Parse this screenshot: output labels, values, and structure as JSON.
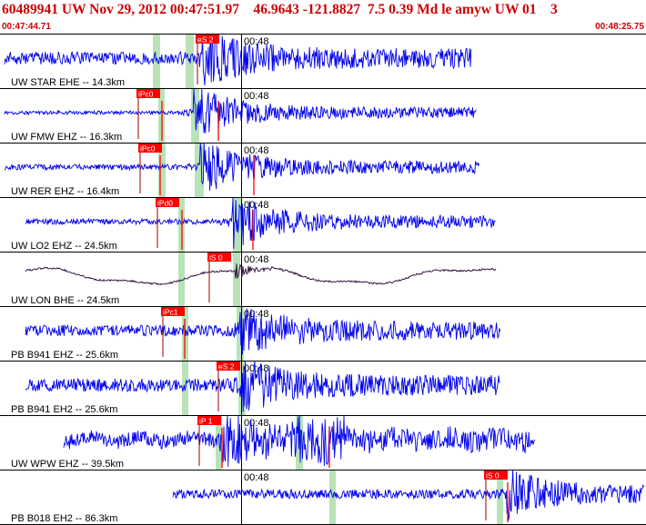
{
  "header": {
    "title": "60489941 UW Nov 29, 2012 00:47:51.97    46.9643 -121.8827  7.5 0.39 Md le amyw UW 01    3",
    "start_time": "00:47:44.71",
    "end_time": "00:48:25.75"
  },
  "minute_label": "00:48",
  "colors": {
    "title": "#cc0000",
    "trace": "#0000ee",
    "trace_dark": "#220033",
    "pick_bg": "#ff0000",
    "pick_text": "#ffffff",
    "window": "#b8e3b8",
    "label": "#000000"
  },
  "channels": [
    {
      "label": "UW STAR EHE -- 14.3km",
      "pick": "eS 2"
    },
    {
      "label": "UW FMW EHZ -- 16.3km",
      "pick": "iPc0"
    },
    {
      "label": "UW RER EHZ -- 16.4km",
      "pick": "iPc0"
    },
    {
      "label": "UW LO2 EHZ -- 24.5km",
      "pick": "iPd0"
    },
    {
      "label": "UW LON BHE -- 24.5km",
      "pick": "iS 0"
    },
    {
      "label": "PB B941 EHZ -- 25.6km",
      "pick": "iPc1"
    },
    {
      "label": "PB B941 EH2 -- 25.6km",
      "pick": "eS 2"
    },
    {
      "label": "UW WPW EHZ -- 39.5km",
      "pick": "iP 1"
    },
    {
      "label": "PB B018 EH2 -- 86.3km",
      "pick": "iS 0"
    }
  ]
}
